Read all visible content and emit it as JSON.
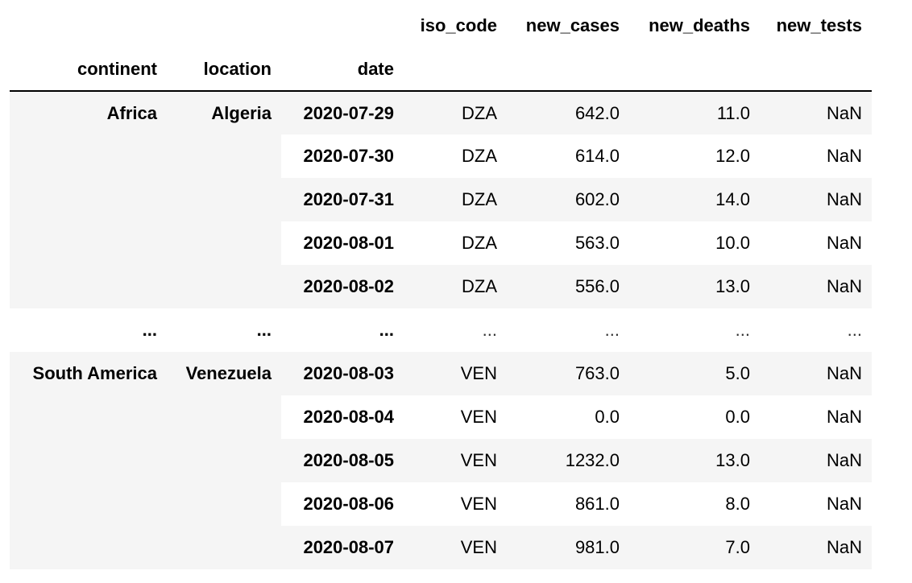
{
  "table": {
    "columns": [
      "iso_code",
      "new_cases",
      "new_deaths",
      "new_tests"
    ],
    "index_names": [
      "continent",
      "location",
      "date"
    ],
    "groups": [
      {
        "continent": "Africa",
        "location": "Algeria",
        "rows": [
          {
            "date": "2020-07-29",
            "iso_code": "DZA",
            "new_cases": "642.0",
            "new_deaths": "11.0",
            "new_tests": "NaN"
          },
          {
            "date": "2020-07-30",
            "iso_code": "DZA",
            "new_cases": "614.0",
            "new_deaths": "12.0",
            "new_tests": "NaN"
          },
          {
            "date": "2020-07-31",
            "iso_code": "DZA",
            "new_cases": "602.0",
            "new_deaths": "14.0",
            "new_tests": "NaN"
          },
          {
            "date": "2020-08-01",
            "iso_code": "DZA",
            "new_cases": "563.0",
            "new_deaths": "10.0",
            "new_tests": "NaN"
          },
          {
            "date": "2020-08-02",
            "iso_code": "DZA",
            "new_cases": "556.0",
            "new_deaths": "13.0",
            "new_tests": "NaN"
          }
        ]
      },
      {
        "continent": "South America",
        "location": "Venezuela",
        "rows": [
          {
            "date": "2020-08-03",
            "iso_code": "VEN",
            "new_cases": "763.0",
            "new_deaths": "5.0",
            "new_tests": "NaN"
          },
          {
            "date": "2020-08-04",
            "iso_code": "VEN",
            "new_cases": "0.0",
            "new_deaths": "0.0",
            "new_tests": "NaN"
          },
          {
            "date": "2020-08-05",
            "iso_code": "VEN",
            "new_cases": "1232.0",
            "new_deaths": "13.0",
            "new_tests": "NaN"
          },
          {
            "date": "2020-08-06",
            "iso_code": "VEN",
            "new_cases": "861.0",
            "new_deaths": "8.0",
            "new_tests": "NaN"
          },
          {
            "date": "2020-08-07",
            "iso_code": "VEN",
            "new_cases": "981.0",
            "new_deaths": "7.0",
            "new_tests": "NaN"
          }
        ]
      }
    ],
    "ellipsis": {
      "index": [
        "...",
        "...",
        "..."
      ],
      "values": [
        "...",
        "...",
        "...",
        "..."
      ]
    }
  }
}
